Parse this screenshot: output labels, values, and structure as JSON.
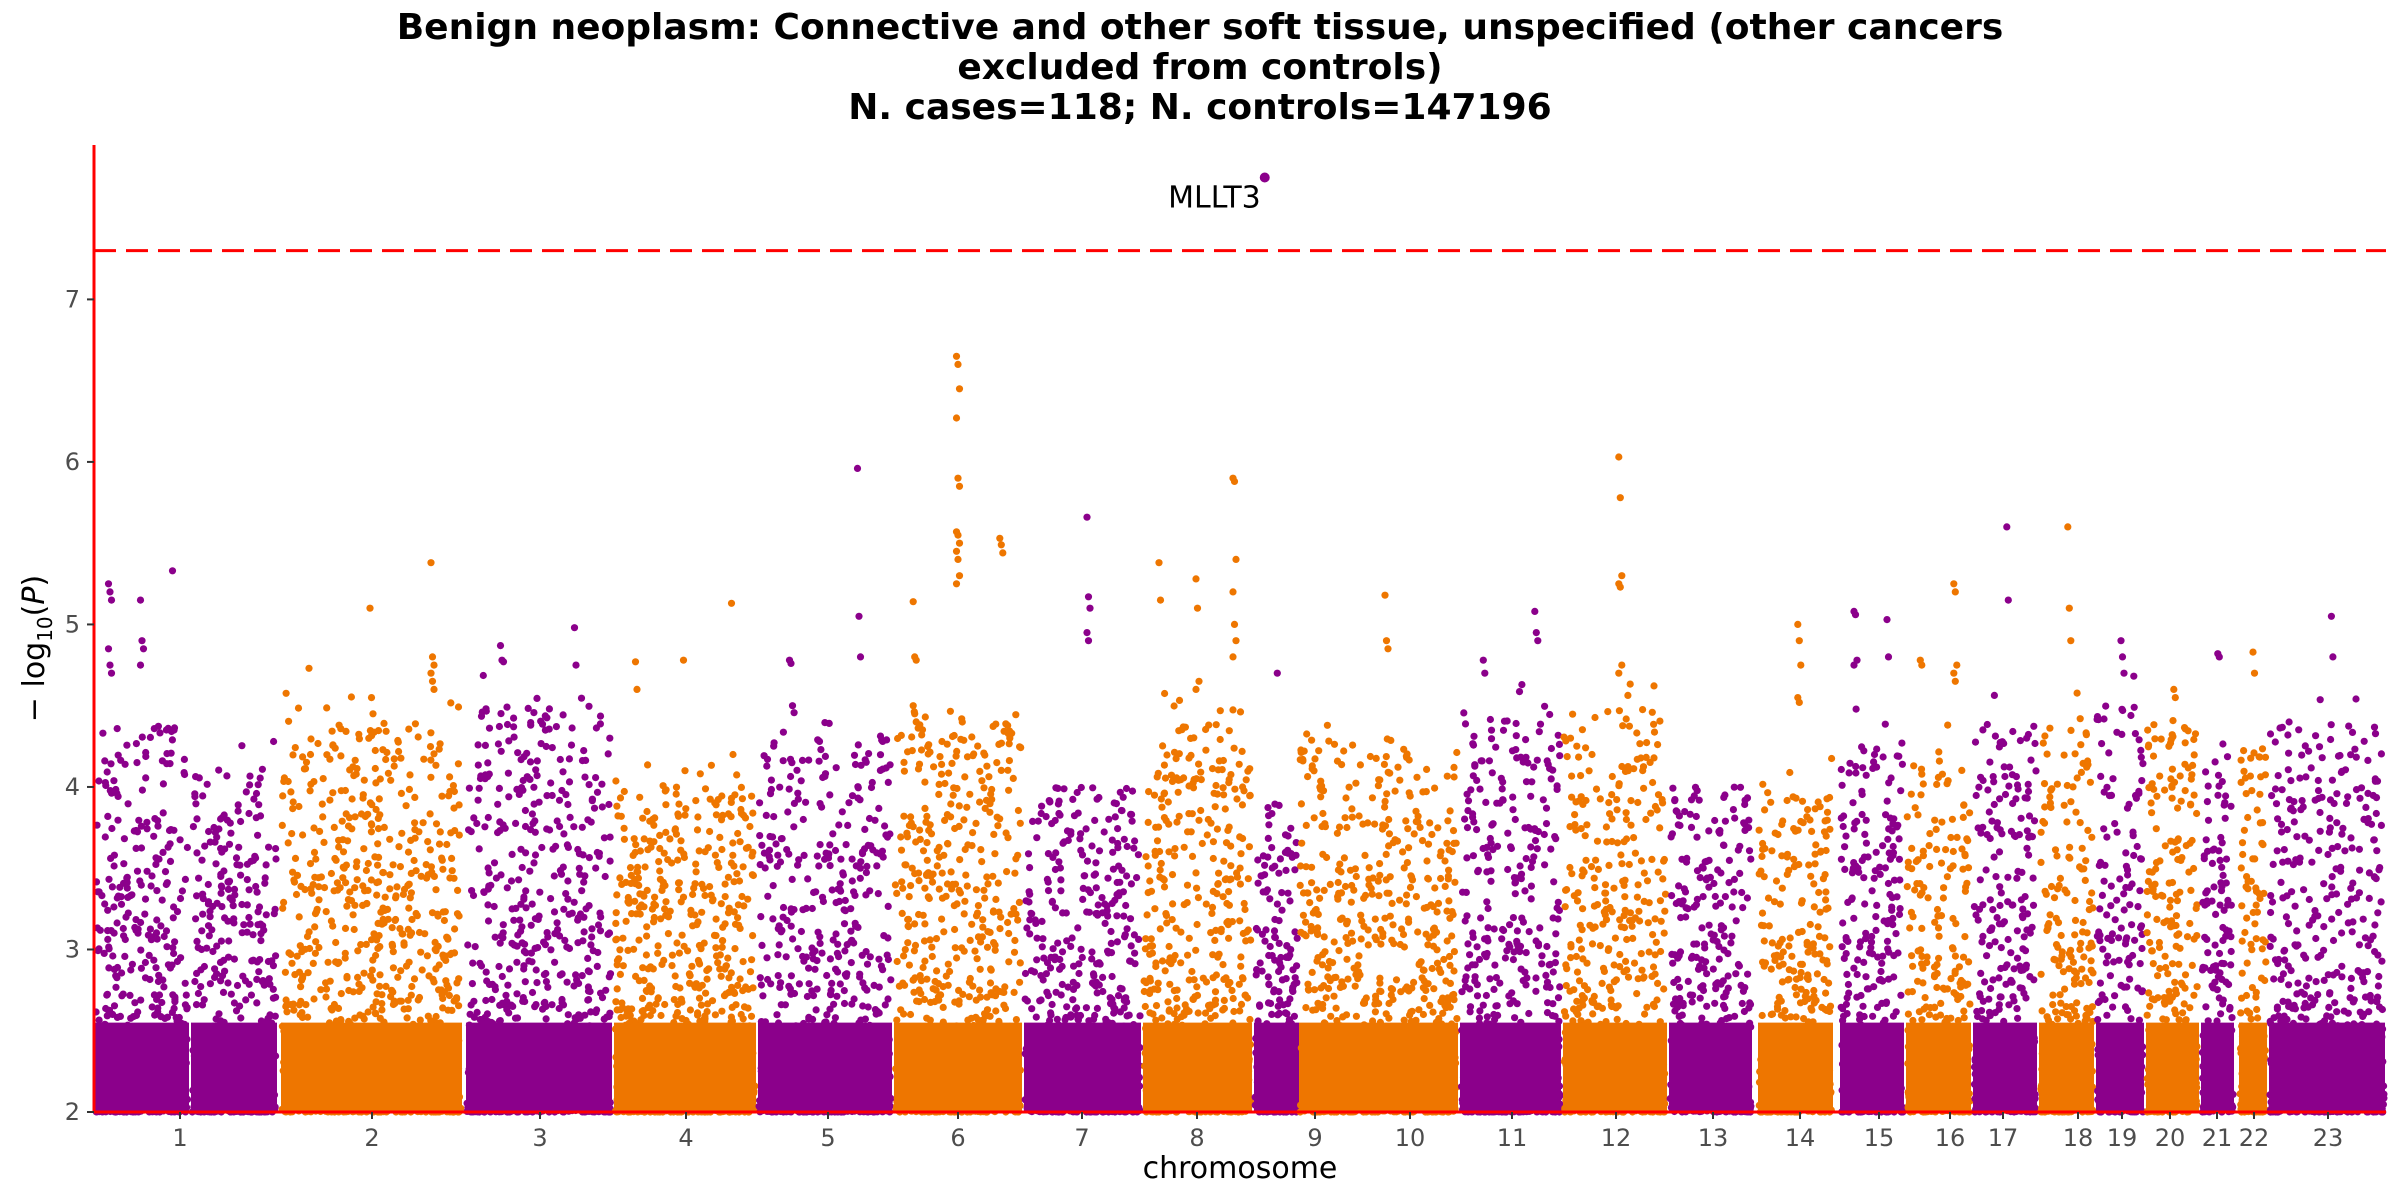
{
  "chart_data": {
    "type": "scatter",
    "title_lines": [
      "Benign neoplasm: Connective and other soft tissue, unspecified (other cancers",
      "excluded from controls)",
      "N. cases=118; N. controls=147196"
    ],
    "xlabel": "chromosome",
    "ylabel": "-log10(P)",
    "ylim": [
      2,
      7.95
    ],
    "yticks": [
      2,
      3,
      4,
      5,
      6,
      7
    ],
    "grid": false,
    "significance_line": 7.3,
    "colors": {
      "purple": "#8B008B",
      "orange": "#EE7600",
      "threshold": "#FF0000",
      "axis": "#FF0000"
    },
    "chromosomes": [
      {
        "label": "1",
        "color": "purple",
        "bg_max": 4.4
      },
      {
        "label": "2",
        "color": "orange",
        "bg_max": 4.4
      },
      {
        "label": "3",
        "color": "purple",
        "bg_max": 4.5
      },
      {
        "label": "4",
        "color": "orange",
        "bg_max": 4.0
      },
      {
        "label": "5",
        "color": "purple",
        "bg_max": 4.3
      },
      {
        "label": "6",
        "color": "orange",
        "bg_max": 4.4
      },
      {
        "label": "7",
        "color": "purple",
        "bg_max": 4.0
      },
      {
        "label": "8",
        "color": "orange",
        "bg_max": 4.4
      },
      {
        "label": "9",
        "color": "purple",
        "bg_max": 3.9
      },
      {
        "label": "10",
        "color": "orange",
        "bg_max": 4.3
      },
      {
        "label": "11",
        "color": "purple",
        "bg_max": 4.5
      },
      {
        "label": "12",
        "color": "orange",
        "bg_max": 4.5
      },
      {
        "label": "13",
        "color": "purple",
        "bg_max": 4.0
      },
      {
        "label": "14",
        "color": "orange",
        "bg_max": 4.0
      },
      {
        "label": "15",
        "color": "purple",
        "bg_max": 4.3
      },
      {
        "label": "16",
        "color": "orange",
        "bg_max": 4.2
      },
      {
        "label": "17",
        "color": "purple",
        "bg_max": 4.4
      },
      {
        "label": "18",
        "color": "orange",
        "bg_max": 4.4
      },
      {
        "label": "19",
        "color": "purple",
        "bg_max": 4.5
      },
      {
        "label": "20",
        "color": "orange",
        "bg_max": 4.4
      },
      {
        "label": "21",
        "color": "purple",
        "bg_max": 4.1
      },
      {
        "label": "22",
        "color": "orange",
        "bg_max": 4.3
      },
      {
        "label": "23",
        "color": "purple",
        "bg_max": 4.4
      }
    ],
    "peaks": [
      {
        "chr": "1",
        "values": [
          5.25,
          5.2,
          5.15,
          4.85,
          4.75,
          4.7
        ]
      },
      {
        "chr": "1",
        "values": [
          5.15,
          4.9,
          4.85,
          4.75
        ]
      },
      {
        "chr": "1",
        "values": [
          5.33,
          4.35
        ]
      },
      {
        "chr": "2",
        "values": [
          4.73,
          4.2
        ]
      },
      {
        "chr": "2",
        "values": [
          5.1,
          4.55,
          4.45
        ]
      },
      {
        "chr": "2",
        "values": [
          5.38,
          4.8,
          4.75,
          4.7,
          4.65,
          4.6
        ]
      },
      {
        "chr": "3",
        "values": [
          4.87,
          4.78,
          4.77
        ]
      },
      {
        "chr": "3",
        "values": [
          4.98,
          4.75
        ]
      },
      {
        "chr": "4",
        "values": [
          4.77,
          4.6
        ]
      },
      {
        "chr": "4",
        "values": [
          4.78,
          4.1
        ]
      },
      {
        "chr": "4",
        "values": [
          5.13,
          4.2
        ]
      },
      {
        "chr": "5",
        "values": [
          4.78,
          4.76,
          4.5
        ]
      },
      {
        "chr": "5",
        "values": [
          5.96,
          5.05,
          4.8
        ]
      },
      {
        "chr": "6",
        "values": [
          5.14,
          4.8,
          4.78,
          4.5,
          4.45,
          4.4
        ]
      },
      {
        "chr": "6",
        "values": [
          6.65,
          6.6,
          6.45,
          6.27,
          5.9,
          5.85,
          5.57,
          5.55,
          5.5,
          5.45,
          5.4,
          5.3,
          5.25
        ]
      },
      {
        "chr": "6",
        "values": [
          5.53,
          5.49,
          5.44
        ]
      },
      {
        "chr": "7",
        "values": [
          5.66,
          5.17,
          5.1,
          4.95,
          4.9
        ]
      },
      {
        "chr": "8",
        "values": [
          5.38,
          5.15
        ]
      },
      {
        "chr": "8",
        "values": [
          5.28,
          5.1,
          4.65,
          4.6
        ]
      },
      {
        "chr": "8",
        "values": [
          5.9,
          5.88,
          5.4,
          5.2,
          5.0,
          4.9,
          4.8
        ]
      },
      {
        "chr": "9",
        "values": [
          4.7
        ]
      },
      {
        "chr": "10",
        "values": [
          5.18,
          4.9,
          4.85
        ]
      },
      {
        "chr": "11",
        "values": [
          4.78,
          4.7
        ]
      },
      {
        "chr": "11",
        "values": [
          5.08,
          4.95,
          4.9
        ]
      },
      {
        "chr": "12",
        "values": [
          6.03,
          5.78,
          5.3,
          5.25,
          5.23,
          4.75,
          4.7
        ]
      },
      {
        "chr": "14",
        "values": [
          5.0,
          4.9,
          4.75,
          4.55,
          4.52
        ]
      },
      {
        "chr": "15",
        "values": [
          5.08,
          5.06,
          4.78,
          4.75
        ]
      },
      {
        "chr": "15",
        "values": [
          5.03,
          4.8
        ]
      },
      {
        "chr": "16",
        "values": [
          4.78,
          4.75
        ]
      },
      {
        "chr": "16",
        "values": [
          5.25,
          5.2,
          4.75,
          4.7,
          4.65
        ]
      },
      {
        "chr": "17",
        "values": [
          5.6,
          5.15
        ]
      },
      {
        "chr": "18",
        "values": [
          5.6,
          5.1,
          4.9
        ]
      },
      {
        "chr": "19",
        "values": [
          4.9,
          4.8,
          4.7
        ]
      },
      {
        "chr": "20",
        "values": [
          4.6,
          4.55
        ]
      },
      {
        "chr": "21",
        "values": [
          4.82,
          4.8
        ]
      },
      {
        "chr": "22",
        "values": [
          4.83,
          4.7
        ]
      },
      {
        "chr": "23",
        "values": [
          5.05,
          4.8
        ]
      }
    ],
    "annotations": [
      {
        "text": "MLLT3",
        "chr": "9",
        "value": 7.75
      }
    ]
  }
}
